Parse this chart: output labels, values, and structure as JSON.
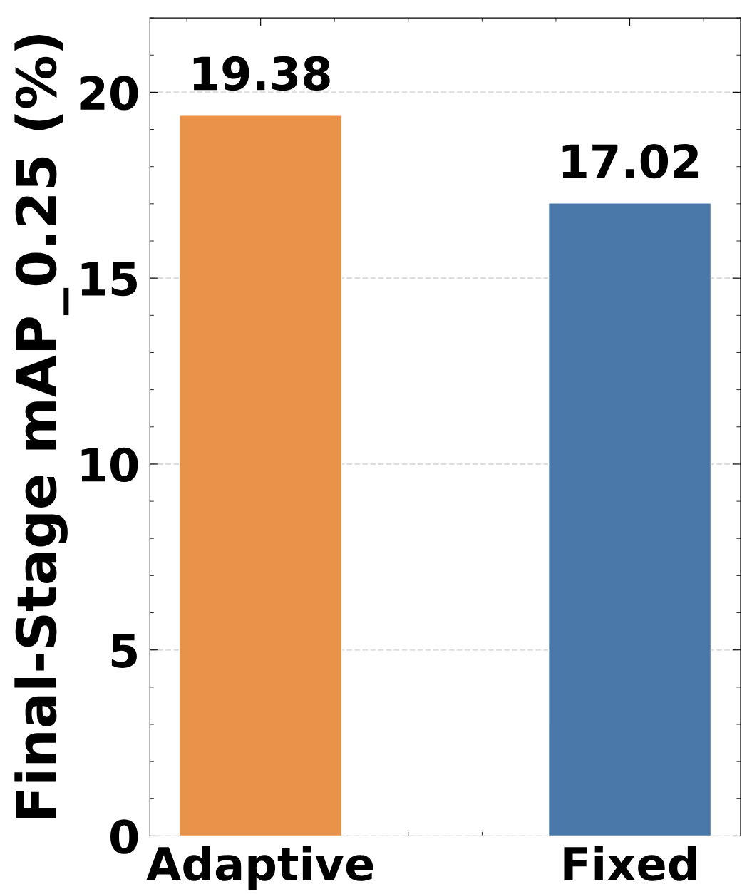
{
  "chart_data": {
    "type": "bar",
    "ylabel": "Final-Stage mAP_0.25 (%)",
    "categories": [
      "Adaptive",
      "Fixed"
    ],
    "values": [
      19.38,
      17.02
    ],
    "colors": [
      "#e8924a",
      "#4a78a8"
    ],
    "ylim": [
      0,
      22
    ],
    "yticks": [
      0,
      5,
      10,
      15,
      20
    ],
    "grid": "y",
    "data_labels": true,
    "legend": false
  }
}
